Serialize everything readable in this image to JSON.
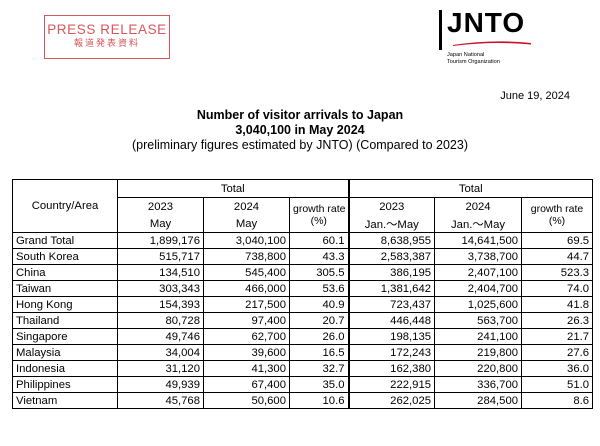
{
  "header": {
    "press_release": "PRESS RELEASE",
    "press_release_ja": "報道発表資料",
    "logo_word": "JNTO",
    "logo_sub_line1": "Japan National",
    "logo_sub_line2": "Tourism Organization",
    "date": "June 19, 2024"
  },
  "titles": {
    "line1": "Number of visitor arrivals to Japan",
    "line2": "3,040,100 in May 2024",
    "line3": "(preliminary figures estimated by JNTO) (Compared to 2023)"
  },
  "table": {
    "country_header": "Country/Area",
    "group_left": "Total",
    "group_right": "Total",
    "col_2023": "2023",
    "col_2024": "2024",
    "col_growth": "growth rate",
    "col_growth_unit": "(%)",
    "col_may": "May",
    "col_janmay": "Jan.～May",
    "rows": [
      {
        "name": "Grand Total",
        "m2023": "1,899,176",
        "m2024": "3,040,100",
        "mg": "60.1",
        "y2023": "8,638,955",
        "y2024": "14,641,500",
        "yg": "69.5"
      },
      {
        "name": "South Korea",
        "m2023": "515,717",
        "m2024": "738,800",
        "mg": "43.3",
        "y2023": "2,583,387",
        "y2024": "3,738,700",
        "yg": "44.7"
      },
      {
        "name": "China",
        "m2023": "134,510",
        "m2024": "545,400",
        "mg": "305.5",
        "y2023": "386,195",
        "y2024": "2,407,100",
        "yg": "523.3"
      },
      {
        "name": "Taiwan",
        "m2023": "303,343",
        "m2024": "466,000",
        "mg": "53.6",
        "y2023": "1,381,642",
        "y2024": "2,404,700",
        "yg": "74.0"
      },
      {
        "name": "Hong Kong",
        "m2023": "154,393",
        "m2024": "217,500",
        "mg": "40.9",
        "y2023": "723,437",
        "y2024": "1,025,600",
        "yg": "41.8"
      },
      {
        "name": "Thailand",
        "m2023": "80,728",
        "m2024": "97,400",
        "mg": "20.7",
        "y2023": "446,448",
        "y2024": "563,700",
        "yg": "26.3"
      },
      {
        "name": "Singapore",
        "m2023": "49,746",
        "m2024": "62,700",
        "mg": "26.0",
        "y2023": "198,135",
        "y2024": "241,100",
        "yg": "21.7"
      },
      {
        "name": "Malaysia",
        "m2023": "34,004",
        "m2024": "39,600",
        "mg": "16.5",
        "y2023": "172,243",
        "y2024": "219,800",
        "yg": "27.6"
      },
      {
        "name": "Indonesia",
        "m2023": "31,120",
        "m2024": "41,300",
        "mg": "32.7",
        "y2023": "162,380",
        "y2024": "220,800",
        "yg": "36.0"
      },
      {
        "name": "Philippines",
        "m2023": "49,939",
        "m2024": "67,400",
        "mg": "35.0",
        "y2023": "222,915",
        "y2024": "336,700",
        "yg": "51.0"
      },
      {
        "name": "Vietnam",
        "m2023": "45,768",
        "m2024": "50,600",
        "mg": "10.6",
        "y2023": "262,025",
        "y2024": "284,500",
        "yg": "8.6"
      }
    ]
  },
  "colors": {
    "brand_red": "#d8565a",
    "logo_swoosh": "#c8102e"
  }
}
